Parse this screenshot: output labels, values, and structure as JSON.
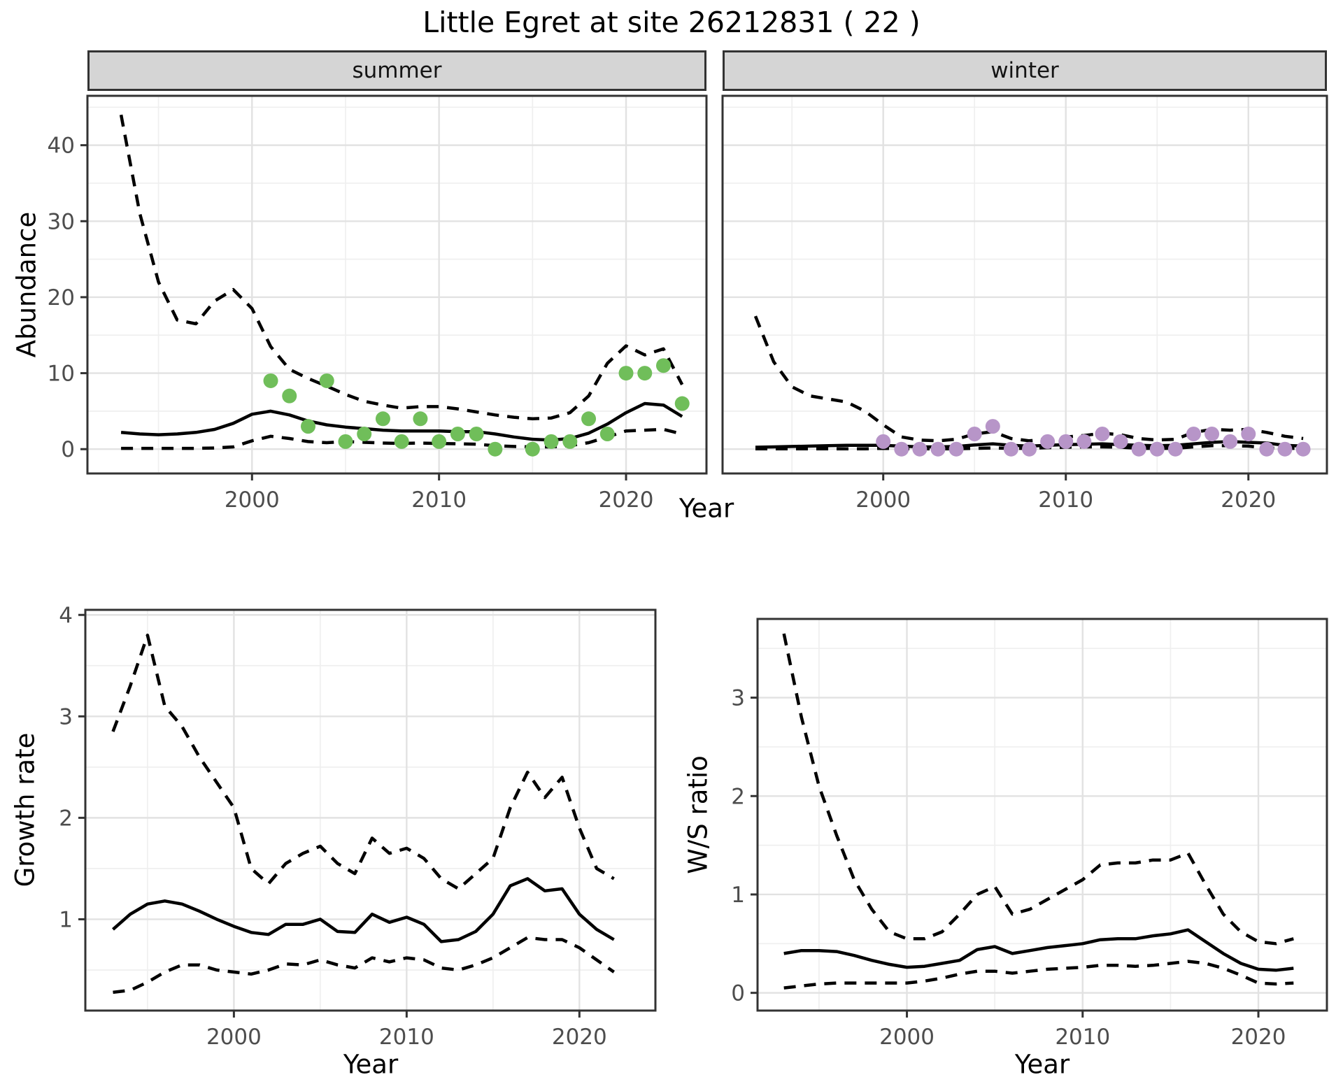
{
  "title": "Little Egret at site 26212831 ( 22 )",
  "axes": {
    "x_title": "Year",
    "abundance_title": "Abundance",
    "growth_title": "Growth rate",
    "ws_title": "W/S ratio"
  },
  "facets": {
    "summer": "summer",
    "winter": "winter"
  },
  "colors": {
    "summer_points": "#70BE5A",
    "winter_points": "#B795C8",
    "line": "#000000",
    "strip_bg": "#D5D5D5",
    "grid_major": "#E2E2E2",
    "grid_minor": "#EFEFEF",
    "panel_border": "#333333",
    "tick_text": "#4D4D4D"
  },
  "chart_data": [
    {
      "id": "summer",
      "type": "line",
      "facet_label": "summer",
      "xlabel": "Year",
      "ylabel": "Abundance",
      "xlim": [
        1991.2,
        2024.3
      ],
      "ylim": [
        -3.2,
        46.5
      ],
      "xticks": [
        2000,
        2010,
        2020
      ],
      "yticks": [
        0,
        10,
        20,
        30,
        40
      ],
      "xminor": [
        1995,
        2005,
        2015
      ],
      "yminor": [
        5,
        15,
        25,
        35,
        45
      ],
      "x": [
        1993,
        1994,
        1995,
        1996,
        1997,
        1998,
        1999,
        2000,
        2001,
        2002,
        2003,
        2004,
        2005,
        2006,
        2007,
        2008,
        2009,
        2010,
        2011,
        2012,
        2013,
        2014,
        2015,
        2016,
        2017,
        2018,
        2019,
        2020,
        2021,
        2022,
        2023
      ],
      "series": [
        {
          "name": "upper_95ci",
          "style": "dashed",
          "values": [
            44,
            31,
            22,
            17,
            16.5,
            19.5,
            21,
            18.5,
            13.5,
            10.5,
            9.3,
            8.3,
            7.2,
            6.3,
            5.8,
            5.4,
            5.6,
            5.6,
            5.3,
            4.9,
            4.5,
            4.2,
            4.0,
            4.1,
            4.8,
            7.0,
            11.3,
            13.6,
            12.4,
            13.2,
            8.5
          ]
        },
        {
          "name": "fitted_abundance",
          "style": "solid",
          "values": [
            2.2,
            2.0,
            1.9,
            2.0,
            2.2,
            2.6,
            3.4,
            4.6,
            5.0,
            4.5,
            3.7,
            3.2,
            2.9,
            2.7,
            2.5,
            2.4,
            2.4,
            2.4,
            2.3,
            2.3,
            2.0,
            1.6,
            1.3,
            1.2,
            1.4,
            2.1,
            3.3,
            4.8,
            6.0,
            5.8,
            4.3
          ]
        },
        {
          "name": "lower_95ci",
          "style": "dashed",
          "values": [
            0.1,
            0.1,
            0.1,
            0.1,
            0.1,
            0.15,
            0.3,
            1.1,
            1.7,
            1.4,
            1.0,
            0.85,
            1.0,
            0.9,
            0.8,
            0.75,
            0.8,
            0.75,
            0.7,
            0.65,
            0.45,
            0.35,
            0.3,
            0.3,
            0.45,
            0.85,
            1.6,
            2.4,
            2.5,
            2.6,
            2.0
          ]
        },
        {
          "name": "observed_counts",
          "style": "points",
          "color": "#70BE5A",
          "x": [
            2001,
            2002,
            2003,
            2004,
            2005,
            2006,
            2007,
            2008,
            2009,
            2010,
            2011,
            2012,
            2013,
            2015,
            2016,
            2017,
            2018,
            2019,
            2020,
            2021,
            2022,
            2023
          ],
          "values": [
            9,
            7,
            3,
            9,
            1,
            2,
            4,
            1,
            4,
            1,
            2,
            2,
            0,
            0,
            1,
            1,
            4,
            2,
            10,
            10,
            11,
            6
          ]
        }
      ]
    },
    {
      "id": "winter",
      "type": "line",
      "facet_label": "winter",
      "xlabel": "Year",
      "ylabel": "Abundance",
      "xlim": [
        1991.2,
        2024.3
      ],
      "ylim": [
        -3.2,
        46.5
      ],
      "xticks": [
        2000,
        2010,
        2020
      ],
      "yticks": [],
      "xminor": [
        1995,
        2005,
        2015
      ],
      "yminor": [
        5,
        15,
        25,
        35,
        45
      ],
      "ymajor_grid": [
        0,
        10,
        20,
        30,
        40
      ],
      "x": [
        1993,
        1994,
        1995,
        1996,
        1997,
        1998,
        1999,
        2000,
        2001,
        2002,
        2003,
        2004,
        2005,
        2006,
        2007,
        2008,
        2009,
        2010,
        2011,
        2012,
        2013,
        2014,
        2015,
        2016,
        2017,
        2018,
        2019,
        2020,
        2021,
        2022,
        2023
      ],
      "series": [
        {
          "name": "upper_95ci",
          "style": "dashed",
          "values": [
            17.5,
            11.5,
            8.2,
            7.0,
            6.6,
            6.2,
            5.0,
            3.2,
            1.6,
            1.2,
            1.1,
            1.3,
            2.0,
            2.3,
            1.4,
            1.1,
            1.3,
            1.6,
            1.8,
            2.1,
            1.9,
            1.4,
            1.2,
            1.3,
            2.2,
            2.6,
            2.5,
            2.6,
            2.2,
            1.7,
            1.4
          ]
        },
        {
          "name": "fitted_abundance",
          "style": "solid",
          "values": [
            0.25,
            0.3,
            0.35,
            0.4,
            0.45,
            0.5,
            0.5,
            0.5,
            0.4,
            0.3,
            0.3,
            0.35,
            0.55,
            0.7,
            0.5,
            0.4,
            0.5,
            0.6,
            0.65,
            0.7,
            0.6,
            0.5,
            0.45,
            0.5,
            0.7,
            0.9,
            1.0,
            0.9,
            0.8,
            0.5,
            0.4
          ]
        },
        {
          "name": "lower_95ci",
          "style": "dashed",
          "values": [
            0.05,
            0.05,
            0.05,
            0.05,
            0.05,
            0.05,
            0.05,
            0.1,
            0.05,
            0.05,
            0.05,
            0.05,
            0.1,
            0.15,
            0.1,
            0.1,
            0.2,
            0.25,
            0.3,
            0.3,
            0.25,
            0.1,
            0.1,
            0.1,
            0.3,
            0.45,
            0.45,
            0.4,
            0.15,
            0.1,
            0.1
          ]
        },
        {
          "name": "observed_counts",
          "style": "points",
          "color": "#B795C8",
          "x": [
            2000,
            2001,
            2002,
            2003,
            2004,
            2005,
            2006,
            2007,
            2008,
            2009,
            2010,
            2011,
            2012,
            2013,
            2014,
            2015,
            2016,
            2017,
            2018,
            2019,
            2020,
            2021,
            2022,
            2023
          ],
          "values": [
            1,
            0,
            0,
            0,
            0,
            2,
            3,
            0,
            0,
            1,
            1,
            1,
            2,
            1,
            0,
            0,
            0,
            2,
            2,
            1,
            2,
            0,
            0,
            0
          ]
        }
      ]
    },
    {
      "id": "growth",
      "type": "line",
      "facet_label": "",
      "xlabel": "Year",
      "ylabel": "Growth rate",
      "xlim": [
        1991.4,
        2024.4
      ],
      "ylim": [
        0.1,
        4.05
      ],
      "xticks": [
        2000,
        2010,
        2020
      ],
      "yticks": [
        1,
        2,
        3,
        4
      ],
      "xminor": [
        1995,
        2005,
        2015
      ],
      "yminor": [
        0.5,
        1.5,
        2.5,
        3.5
      ],
      "x": [
        1993,
        1994,
        1995,
        1996,
        1997,
        1998,
        1999,
        2000,
        2001,
        2002,
        2003,
        2004,
        2005,
        2006,
        2007,
        2008,
        2009,
        2010,
        2011,
        2012,
        2013,
        2014,
        2015,
        2016,
        2017,
        2018,
        2019,
        2020,
        2021,
        2022
      ],
      "series": [
        {
          "name": "upper_95ci",
          "style": "dashed",
          "values": [
            2.85,
            3.3,
            3.8,
            3.1,
            2.9,
            2.6,
            2.35,
            2.1,
            1.5,
            1.35,
            1.55,
            1.65,
            1.72,
            1.55,
            1.45,
            1.8,
            1.65,
            1.7,
            1.6,
            1.4,
            1.3,
            1.45,
            1.6,
            2.1,
            2.45,
            2.2,
            2.4,
            1.9,
            1.5,
            1.4
          ]
        },
        {
          "name": "growth_rate",
          "style": "solid",
          "values": [
            0.9,
            1.05,
            1.15,
            1.18,
            1.15,
            1.08,
            1.0,
            0.93,
            0.87,
            0.85,
            0.95,
            0.95,
            1.0,
            0.88,
            0.87,
            1.05,
            0.97,
            1.02,
            0.95,
            0.78,
            0.8,
            0.88,
            1.05,
            1.33,
            1.4,
            1.28,
            1.3,
            1.05,
            0.9,
            0.8
          ]
        },
        {
          "name": "lower_95ci",
          "style": "dashed",
          "values": [
            0.28,
            0.3,
            0.38,
            0.48,
            0.55,
            0.55,
            0.5,
            0.48,
            0.46,
            0.5,
            0.56,
            0.55,
            0.6,
            0.55,
            0.52,
            0.62,
            0.58,
            0.62,
            0.6,
            0.52,
            0.5,
            0.55,
            0.62,
            0.72,
            0.82,
            0.8,
            0.8,
            0.72,
            0.6,
            0.48
          ]
        }
      ]
    },
    {
      "id": "ws",
      "type": "line",
      "facet_label": "",
      "xlabel": "Year",
      "ylabel": "W/S ratio",
      "xlim": [
        1991.5,
        2023.9
      ],
      "ylim": [
        -0.18,
        3.8
      ],
      "xticks": [
        2000,
        2010,
        2020
      ],
      "yticks": [
        0,
        1,
        2,
        3
      ],
      "xminor": [
        1995,
        2005,
        2015
      ],
      "yminor": [
        0.5,
        1.5,
        2.5,
        3.5
      ],
      "x": [
        1993,
        1994,
        1995,
        1996,
        1997,
        1998,
        1999,
        2000,
        2001,
        2002,
        2003,
        2004,
        2005,
        2006,
        2007,
        2008,
        2009,
        2010,
        2011,
        2012,
        2013,
        2014,
        2015,
        2016,
        2017,
        2018,
        2019,
        2020,
        2021,
        2022
      ],
      "series": [
        {
          "name": "upper_95ci",
          "style": "dashed",
          "values": [
            3.65,
            2.8,
            2.1,
            1.6,
            1.15,
            0.85,
            0.62,
            0.55,
            0.55,
            0.62,
            0.8,
            1.0,
            1.08,
            0.8,
            0.85,
            0.95,
            1.05,
            1.15,
            1.3,
            1.32,
            1.32,
            1.35,
            1.35,
            1.42,
            1.1,
            0.8,
            0.62,
            0.52,
            0.5,
            0.55
          ]
        },
        {
          "name": "ws_ratio",
          "style": "solid",
          "values": [
            0.4,
            0.43,
            0.43,
            0.42,
            0.38,
            0.33,
            0.29,
            0.26,
            0.27,
            0.3,
            0.33,
            0.44,
            0.47,
            0.4,
            0.43,
            0.46,
            0.48,
            0.5,
            0.54,
            0.55,
            0.55,
            0.58,
            0.6,
            0.64,
            0.52,
            0.4,
            0.3,
            0.24,
            0.23,
            0.25
          ]
        },
        {
          "name": "lower_95ci",
          "style": "dashed",
          "values": [
            0.05,
            0.07,
            0.09,
            0.1,
            0.1,
            0.1,
            0.1,
            0.1,
            0.12,
            0.15,
            0.19,
            0.22,
            0.22,
            0.2,
            0.22,
            0.24,
            0.25,
            0.26,
            0.28,
            0.28,
            0.27,
            0.28,
            0.3,
            0.32,
            0.3,
            0.25,
            0.18,
            0.1,
            0.09,
            0.1
          ]
        }
      ]
    }
  ]
}
